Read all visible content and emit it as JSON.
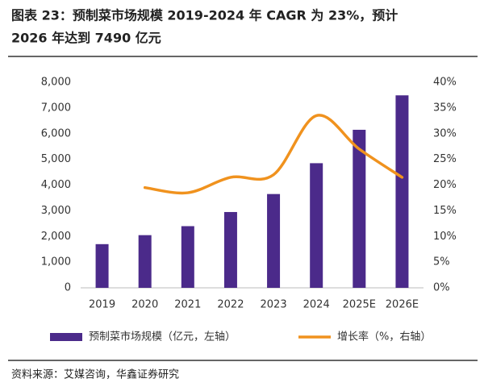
{
  "chart_data": {
    "type": "bar-line",
    "title": [
      "图表 23：预制菜市场规模 2019-2024 年 CAGR 为 23%，预计",
      "2026 年达到 7490 亿元"
    ],
    "source": "资料来源：艾媒咨询，华鑫证券研究",
    "categories": [
      "2019",
      "2020",
      "2021",
      "2022",
      "2023",
      "2024",
      "2025E",
      "2026E"
    ],
    "series": [
      {
        "name": "预制菜市场规模（亿元，左轴）",
        "color": "#4b2a8a",
        "type": "bar",
        "values": [
          1700,
          2050,
          2400,
          2950,
          3650,
          4850,
          6150,
          7490
        ]
      },
      {
        "name": "增长率（%，右轴）",
        "color": "#f0921e",
        "type": "line",
        "axis": "y2",
        "values": [
          null,
          19.5,
          18.5,
          21.5,
          22,
          33.5,
          27,
          21.5
        ]
      }
    ],
    "ylim": [
      0,
      8000
    ],
    "yticks": [
      0,
      {
        "value": 1000,
        "label": "1,000"
      },
      {
        "value": 2000,
        "label": "2,000"
      },
      {
        "value": 3000,
        "label": "3,000"
      },
      {
        "value": 4000,
        "label": "4,000"
      },
      {
        "value": 5000,
        "label": "5,000"
      },
      {
        "value": 6000,
        "label": "6,000"
      },
      {
        "value": 7000,
        "label": "7,000"
      },
      {
        "value": 8000,
        "label": "8,000"
      }
    ],
    "y2lim": [
      0,
      40
    ],
    "y2ticks": [
      {
        "value": 0,
        "label": "0%"
      },
      {
        "value": 5,
        "label": "5%"
      },
      {
        "value": 10,
        "label": "10%"
      },
      {
        "value": 15,
        "label": "15%"
      },
      {
        "value": 20,
        "label": "20%"
      },
      {
        "value": 25,
        "label": "25%"
      },
      {
        "value": 30,
        "label": "30%"
      },
      {
        "value": 35,
        "label": "35%"
      },
      {
        "value": 40,
        "label": "40%"
      }
    ],
    "grid": false
  }
}
